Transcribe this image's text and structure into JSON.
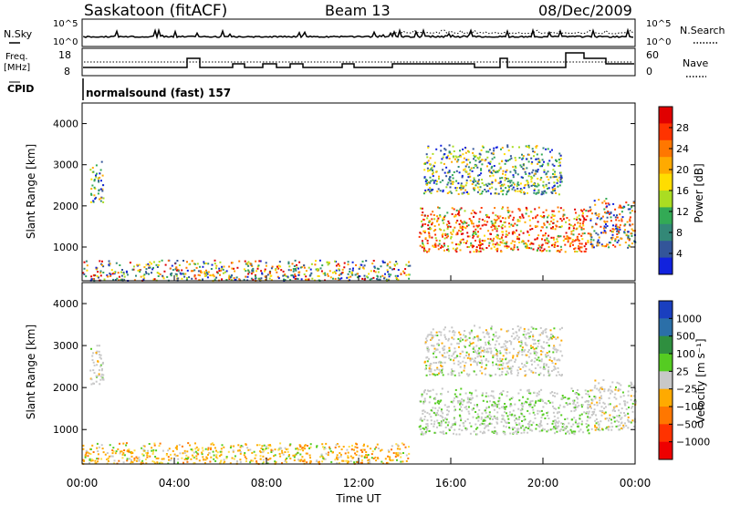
{
  "header": {
    "station": "Saskatoon (fitACF)",
    "beam": "Beam 13",
    "date": "08/Dec/2009"
  },
  "top_panels": {
    "nsky_label": "N.Sky",
    "nsky_ticks": [
      "10^5",
      "10^0"
    ],
    "nsearch_label": "N.Search",
    "nsearch_ticks": [
      "10^5",
      "10^0"
    ],
    "freq_label": "Freq.",
    "freq_unit": "[MHz]",
    "freq_ticks": [
      "18",
      "8"
    ],
    "nave_label": "Nave",
    "nave_ticks": [
      "60",
      "0"
    ],
    "cpid_label": "CPID",
    "cpid_value": "normalsound (fast) 157"
  },
  "chart_data": [
    {
      "type": "heatmap",
      "panel": "power",
      "ylabel": "Slant Range [km]",
      "yticks": [
        "4000",
        "3000",
        "2000",
        "1000"
      ],
      "ylim": [
        180,
        4500
      ],
      "xlim": [
        0,
        24
      ],
      "colorbar": {
        "label": "Power [dB]",
        "ticks": [
          "28",
          "24",
          "20",
          "16",
          "12",
          "8",
          "4"
        ],
        "colors": [
          "#e00000",
          "#ff3300",
          "#ff7700",
          "#ffaa00",
          "#ffdd00",
          "#aadd22",
          "#33aa55",
          "#338877",
          "#335599",
          "#1122dd"
        ]
      },
      "echo_regions": [
        {
          "t_start": 0.3,
          "t_end": 0.9,
          "r_min": 2100,
          "r_max": 3100,
          "level": "medium"
        },
        {
          "t_start": 0.0,
          "t_end": 14.2,
          "r_min": 200,
          "r_max": 700,
          "level": "low-medium"
        },
        {
          "t_start": 14.6,
          "t_end": 22.0,
          "r_min": 900,
          "r_max": 2000,
          "level": "high"
        },
        {
          "t_start": 14.8,
          "t_end": 20.8,
          "r_min": 2300,
          "r_max": 3500,
          "level": "medium"
        },
        {
          "t_start": 22.0,
          "t_end": 24.0,
          "r_min": 1000,
          "r_max": 2200,
          "level": "medium-high"
        }
      ]
    },
    {
      "type": "heatmap",
      "panel": "velocity",
      "ylabel": "Slant Range [km]",
      "yticks": [
        "4000",
        "3000",
        "2000",
        "1000"
      ],
      "ylim": [
        180,
        4500
      ],
      "xlim": [
        0,
        24
      ],
      "xlabel": "Time UT",
      "xticks": [
        "00:00",
        "04:00",
        "08:00",
        "12:00",
        "16:00",
        "20:00",
        "00:00"
      ],
      "colorbar": {
        "label": "Velocity [m s⁻¹]",
        "ticks": [
          "1000",
          "500",
          "100",
          "25",
          "−25",
          "−100",
          "−500",
          "−1000"
        ],
        "colors": [
          "#1a3fbf",
          "#2b6fa8",
          "#2f8f3f",
          "#55cc22",
          "#c8c8c8",
          "#ffaa00",
          "#ff7700",
          "#ff3300",
          "#ee0000"
        ]
      },
      "echo_regions": [
        {
          "t_start": 0.3,
          "t_end": 0.9,
          "r_min": 2100,
          "r_max": 3100,
          "velocity": "near zero"
        },
        {
          "t_start": 0.0,
          "t_end": 14.2,
          "r_min": 200,
          "r_max": 700,
          "velocity": "-25 to -100"
        },
        {
          "t_start": 14.6,
          "t_end": 22.0,
          "r_min": 900,
          "r_max": 2000,
          "velocity": "near zero to +100"
        },
        {
          "t_start": 14.8,
          "t_end": 20.8,
          "r_min": 2300,
          "r_max": 3500,
          "velocity": "near zero"
        },
        {
          "t_start": 22.0,
          "t_end": 24.0,
          "r_min": 1000,
          "r_max": 2200,
          "velocity": "near zero"
        }
      ]
    }
  ]
}
